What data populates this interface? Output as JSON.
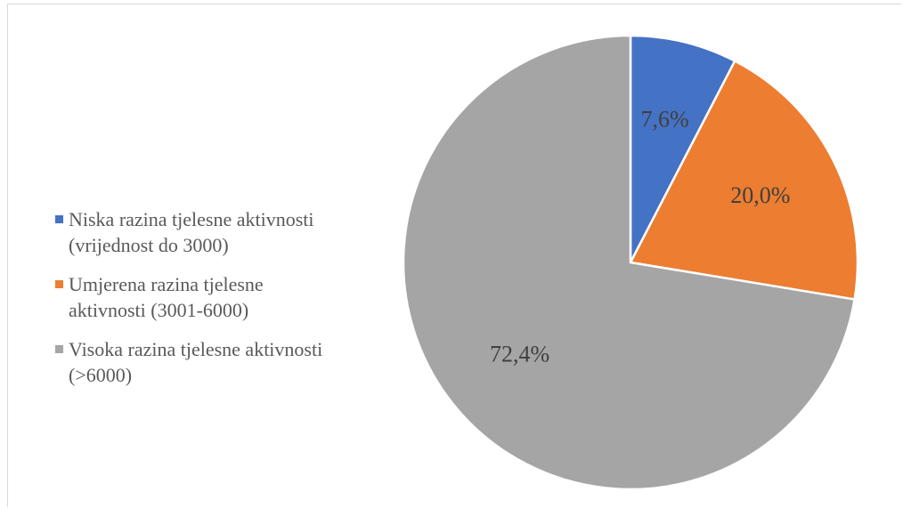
{
  "chart_data": {
    "type": "pie",
    "categories": [
      "Niska razina tjelesne aktivnosti (vrijednost do 3000)",
      "Umjerena razina tjelesne aktivnosti (3001-6000)",
      "Visoka razina tjelesne aktivnosti (>6000)"
    ],
    "values": [
      7.6,
      20.0,
      72.4
    ],
    "value_labels": [
      "7,6%",
      "20,0%",
      "72,4%"
    ],
    "colors": [
      "#4472c4",
      "#ed7d31",
      "#a5a5a5"
    ],
    "legend": "left"
  }
}
